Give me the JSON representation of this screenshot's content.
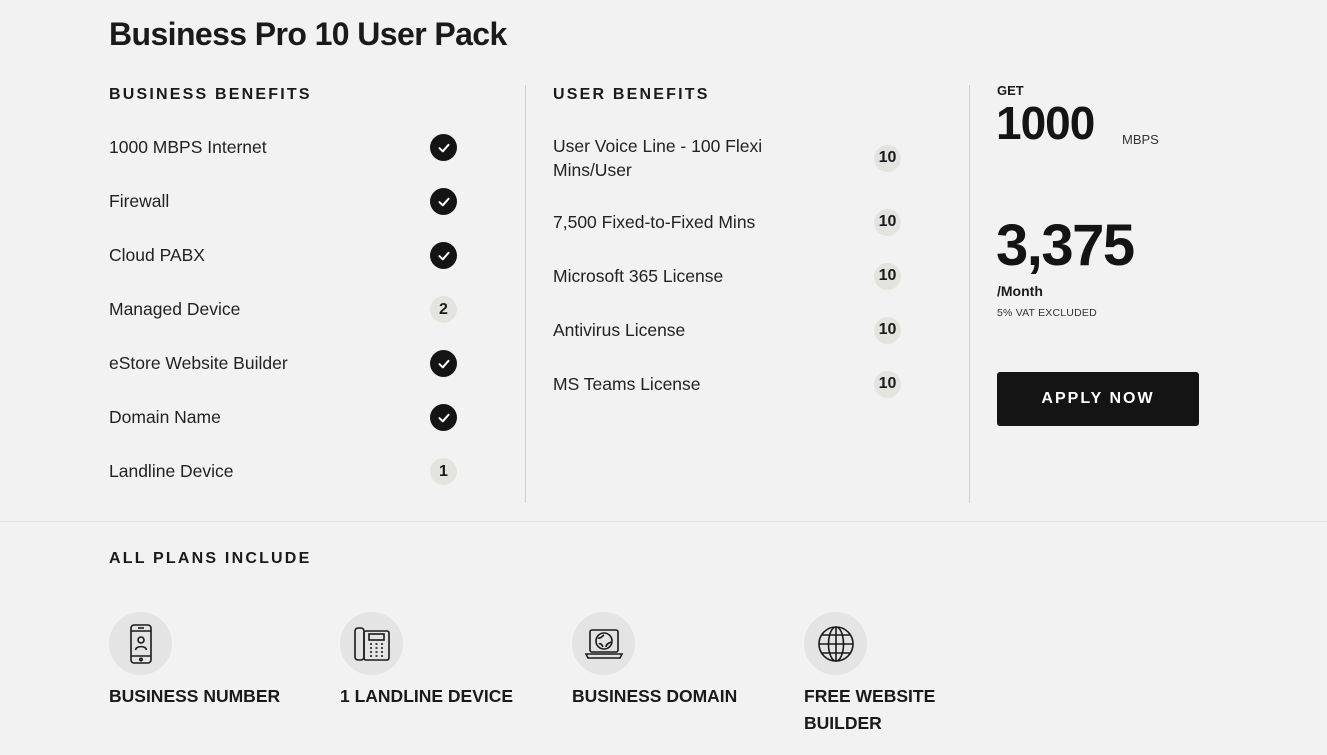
{
  "plan": {
    "title": "Business Pro 10 User Pack"
  },
  "business_benefits": {
    "heading": "BUSINESS BENEFITS",
    "items": [
      {
        "label": "1000 MBPS Internet",
        "badge": "check",
        "count": ""
      },
      {
        "label": "Firewall",
        "badge": "check",
        "count": ""
      },
      {
        "label": "Cloud PABX",
        "badge": "check",
        "count": ""
      },
      {
        "label": "Managed Device",
        "badge": "count",
        "count": "2"
      },
      {
        "label": "eStore Website Builder",
        "badge": "check",
        "count": ""
      },
      {
        "label": "Domain Name",
        "badge": "check",
        "count": ""
      },
      {
        "label": "Landline Device",
        "badge": "count",
        "count": "1"
      }
    ]
  },
  "user_benefits": {
    "heading": "USER BENEFITS",
    "items": [
      {
        "label": "User Voice Line - 100 Flexi Mins/User",
        "count": "10"
      },
      {
        "label": "7,500 Fixed-to-Fixed Mins",
        "count": "10"
      },
      {
        "label": "Microsoft 365 License",
        "count": "10"
      },
      {
        "label": "Antivirus License",
        "count": "10"
      },
      {
        "label": "MS Teams License",
        "count": "10"
      }
    ]
  },
  "offer": {
    "get_label": "GET",
    "speed_value": "1000",
    "speed_unit": "MBPS",
    "price": "3,375",
    "period": "/Month",
    "vat_note": "5% VAT EXCLUDED",
    "apply_label": "APPLY NOW"
  },
  "all_plans": {
    "heading": "ALL PLANS INCLUDE",
    "items": [
      {
        "label": "BUSINESS NUMBER",
        "icon": "mobile-phone-icon"
      },
      {
        "label": "1 LANDLINE DEVICE",
        "icon": "desk-phone-icon"
      },
      {
        "label": "BUSINESS DOMAIN",
        "icon": "laptop-globe-icon"
      },
      {
        "label": "FREE WEBSITE BUILDER",
        "icon": "globe-icon"
      }
    ]
  },
  "colors": {
    "background": "#f2f2f2",
    "primary": "#141414",
    "count_badge": "#e4e4de",
    "icon_circle": "#e4e4e4",
    "divider": "#cfcfcf"
  }
}
